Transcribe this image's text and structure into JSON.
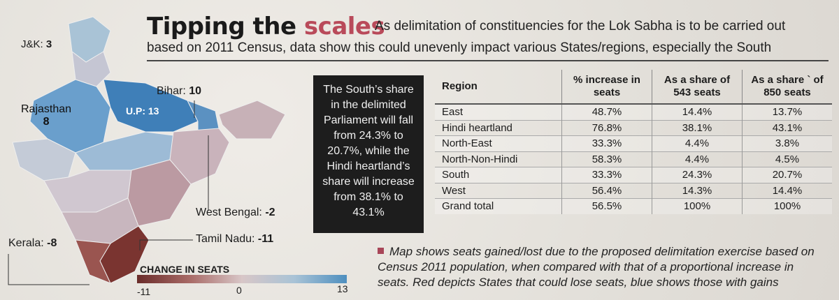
{
  "headline": {
    "main": "Tipping the ",
    "accent": "scales"
  },
  "intro": {
    "line1": "As delimitation of constituencies for the Lok Sabha is to be carried out",
    "line2": "based on 2011 Census, data show this could unevenly impact various States/regions, especially the South"
  },
  "map": {
    "labels": {
      "jk": {
        "name": "J&K: ",
        "value": "3"
      },
      "bihar": {
        "name": "Bihar: ",
        "value": "10"
      },
      "rajasthan": {
        "name": "Rajasthan",
        "value": "8"
      },
      "up": {
        "name": "U.P: 13"
      },
      "west_bengal": {
        "name": "West Bengal: ",
        "value": "-2"
      },
      "tamil_nadu": {
        "name": "Tamil Nadu: ",
        "value": "-11"
      },
      "kerala": {
        "name": "Kerala: ",
        "value": "-8"
      }
    },
    "colors": {
      "gain_strong": "#4e8fbf",
      "gain_light": "#a9c3d6",
      "neutral": "#d4c8cb",
      "loss_light": "#b98a8a",
      "loss_strong": "#6a2c2a"
    }
  },
  "callout": "The South’s share in the delimited Parliament will fall from 24.3% to 20.7%, while the Hindi heartland’s share will increase from 38.1% to 43.1%",
  "table": {
    "headers": [
      "Region",
      "% increase in seats",
      "As a share of 543 seats",
      "As a share ` of 850 seats"
    ],
    "rows": [
      [
        "East",
        "48.7%",
        "14.4%",
        "13.7%"
      ],
      [
        "Hindi heartland",
        "76.8%",
        "38.1%",
        "43.1%"
      ],
      [
        "North-East",
        "33.3%",
        "4.4%",
        "3.8%"
      ],
      [
        "North-Non-Hindi",
        "58.3%",
        "4.4%",
        "4.5%"
      ],
      [
        "South",
        "33.3%",
        "24.3%",
        "20.7%"
      ],
      [
        "West",
        "56.4%",
        "14.3%",
        "14.4%"
      ],
      [
        "Grand total",
        "56.5%",
        "100%",
        "100%"
      ]
    ]
  },
  "note": "Map shows seats gained/lost due to the proposed delimitation exercise based on Census 2011 population, when compared with that of a proportional increase in seats. Red depicts States that could lose seats, blue shows those with gains",
  "legend": {
    "title": "CHANGE IN SEATS",
    "min": "-11",
    "mid": "0",
    "max": "13"
  }
}
